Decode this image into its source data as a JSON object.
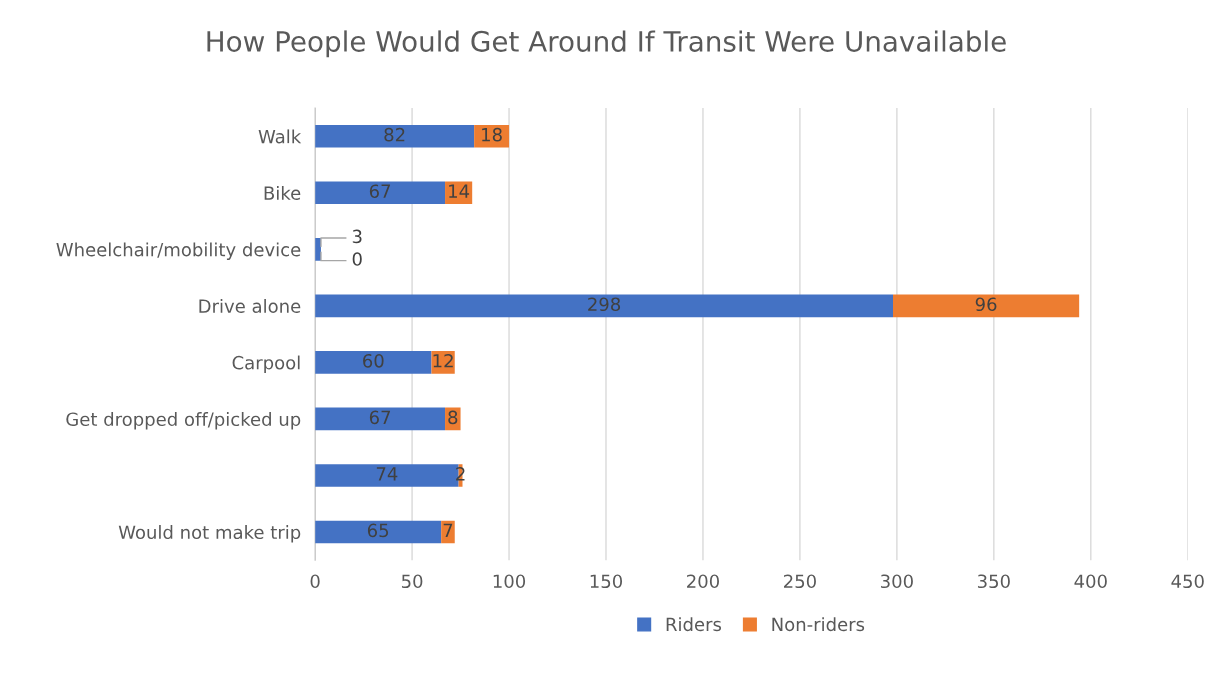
{
  "chart_data": {
    "type": "bar",
    "title": "How People Would Get Around If Transit Were Unavailable",
    "orientation": "horizontal",
    "stacked": true,
    "categories": [
      "Walk",
      "Bike",
      "Wheelchair/mobility device",
      "Drive alone",
      "Carpool",
      "Get dropped off/picked up",
      null,
      "Would not make trip"
    ],
    "series": [
      {
        "name": "Riders",
        "color": "#4472c4",
        "values": [
          82,
          67,
          3,
          298,
          60,
          67,
          74,
          65
        ]
      },
      {
        "name": "Non-riders",
        "color": "#ed7d31",
        "values": [
          18,
          14,
          0,
          96,
          12,
          8,
          2,
          7
        ]
      }
    ],
    "xlim": [
      0,
      450
    ],
    "xticks": [
      0,
      50,
      100,
      150,
      200,
      250,
      300,
      350,
      400,
      450
    ],
    "grid": "x",
    "legend": "bottom",
    "data_labels": true
  }
}
